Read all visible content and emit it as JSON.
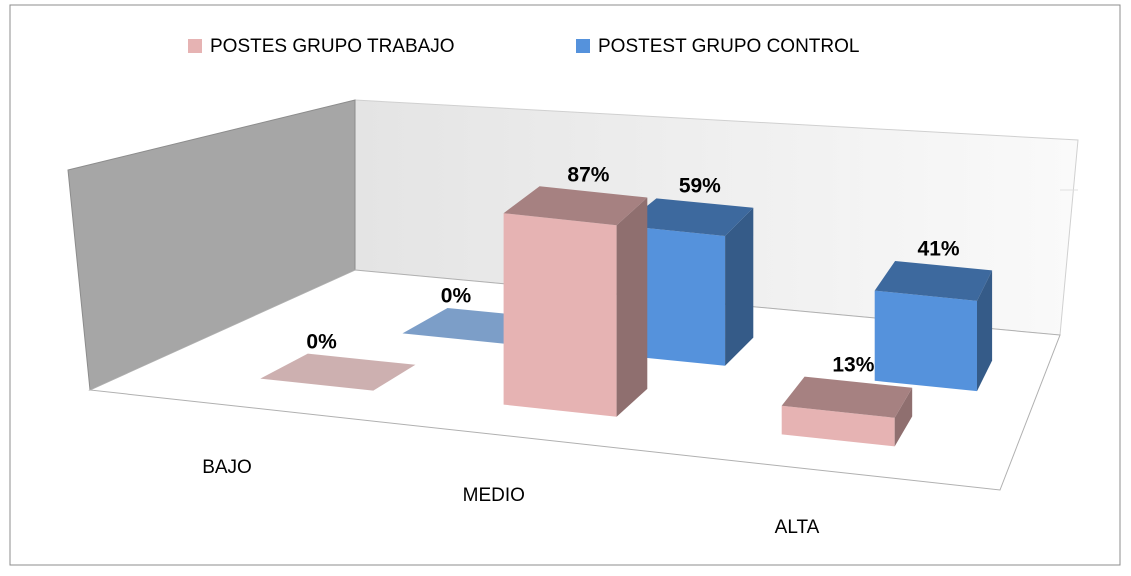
{
  "chart_data": {
    "type": "bar3d",
    "categories": [
      "BAJO",
      "MEDIO",
      "ALTA"
    ],
    "series": [
      {
        "name": "POSTES GRUPO TRABAJO",
        "color": "#e6b3b3",
        "values": [
          0,
          87,
          13
        ],
        "value_labels": [
          "0%",
          "87%",
          "13%"
        ]
      },
      {
        "name": "POSTEST GRUPO CONTROL",
        "color": "#5592dc",
        "values": [
          0,
          59,
          41
        ],
        "value_labels": [
          "0%",
          "59%",
          "41%"
        ]
      }
    ],
    "legend": "top"
  }
}
